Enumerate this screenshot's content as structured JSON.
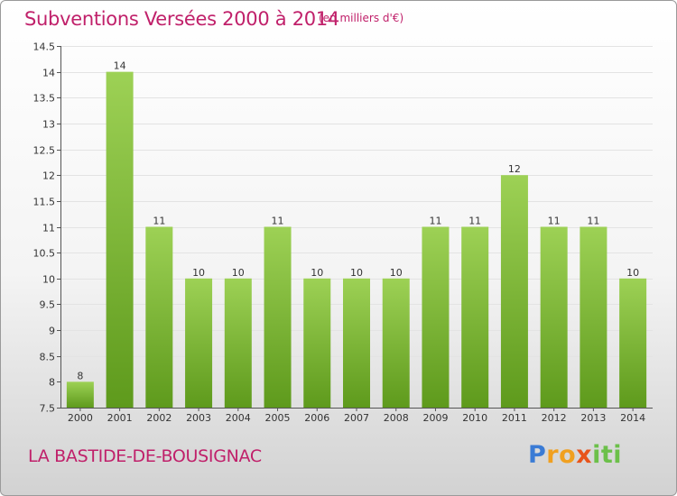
{
  "header": {
    "title": "Subventions Versées 2000 à 2014",
    "subtitle": "(en milliers d'€)"
  },
  "footer": {
    "commune": "LA BASTIDE-DE-BOUSIGNAC",
    "logo_parts": [
      "P",
      "ro",
      "x",
      "iti"
    ]
  },
  "colors": {
    "bar_top": "#9dd155",
    "bar_bottom": "#5e9a1c",
    "title": "#c0206a",
    "grid": "#e3e3e3"
  },
  "chart_data": {
    "type": "bar",
    "title": "Subventions Versées 2000 à 2014",
    "categories": [
      "2000",
      "2001",
      "2002",
      "2003",
      "2004",
      "2005",
      "2006",
      "2007",
      "2008",
      "2009",
      "2010",
      "2011",
      "2012",
      "2013",
      "2014"
    ],
    "values": [
      8,
      14,
      11,
      10,
      10,
      11,
      10,
      10,
      10,
      11,
      11,
      12,
      11,
      11,
      10
    ],
    "data_labels": [
      "8",
      "14",
      "11",
      "10",
      "10",
      "11",
      "10",
      "10",
      "10",
      "11",
      "11",
      "12",
      "11",
      "11",
      "10"
    ],
    "ylim": [
      7.5,
      14.5
    ],
    "yticks": [
      7.5,
      8,
      8.5,
      9,
      9.5,
      10,
      10.5,
      11,
      11.5,
      12,
      12.5,
      13,
      13.5,
      14,
      14.5
    ],
    "ytick_labels": [
      "7.5",
      "8",
      "8.5",
      "9",
      "9.5",
      "10",
      "10.5",
      "11",
      "11.5",
      "12",
      "12.5",
      "13",
      "13.5",
      "14",
      "14.5"
    ],
    "grid": true,
    "legend": "none"
  }
}
